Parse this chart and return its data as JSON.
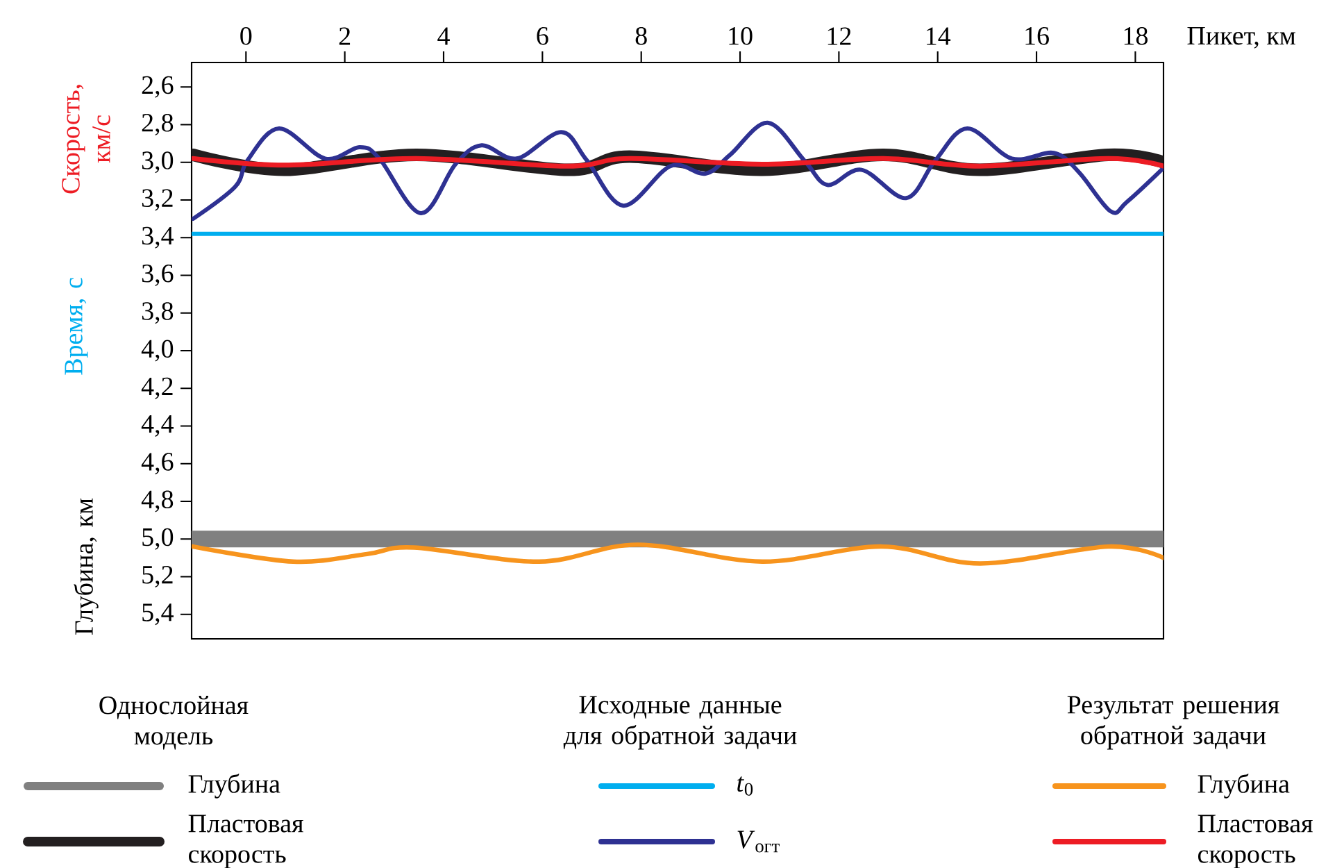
{
  "chart_data": {
    "type": "line",
    "xlabel": "Пикет, км",
    "ylabel": "Скорость, км/с",
    "annotations": [
      "Время, с",
      "Глубина, км",
      "Однослойная модель",
      "Исходные данные для обратной задачи",
      "Результат решения обратной задачи"
    ],
    "xlim": [
      -1.1,
      18.57
    ],
    "ylim": [
      5.53,
      2.47
    ],
    "xticks": [
      0,
      2,
      4,
      6,
      8,
      10,
      12,
      14,
      16,
      18
    ],
    "yticks": [
      {
        "value": 2.6,
        "label": "2,6"
      },
      {
        "value": 2.8,
        "label": "2,8"
      },
      {
        "value": 3.0,
        "label": "3,0"
      },
      {
        "value": 3.2,
        "label": "3,2"
      },
      {
        "value": 3.4,
        "label": "3,4"
      },
      {
        "value": 3.6,
        "label": "3,6"
      },
      {
        "value": 3.8,
        "label": "3,8"
      },
      {
        "value": 4.0,
        "label": "4,0"
      },
      {
        "value": 4.2,
        "label": "4,2"
      },
      {
        "value": 4.4,
        "label": "4,4"
      },
      {
        "value": 4.6,
        "label": "4,6"
      },
      {
        "value": 4.8,
        "label": "4,8"
      },
      {
        "value": 5.0,
        "label": "5,0"
      },
      {
        "value": 5.2,
        "label": "5,2"
      },
      {
        "value": 5.4,
        "label": "5,4"
      }
    ],
    "legend": "bottom",
    "grid": false,
    "series": [
      {
        "name": "Глубина",
        "color": "#808080",
        "x": [
          -1.1,
          18.57
        ],
        "values": [
          5.0,
          5.0
        ]
      },
      {
        "name": "Пластовая скорость",
        "color": "#231f20",
        "x": [
          -1.07,
          0.77,
          3.45,
          6.5,
          7.76,
          10.45,
          12.9,
          14.85,
          17.45,
          18.57
        ],
        "values": [
          2.96,
          3.04,
          2.96,
          3.04,
          2.97,
          3.04,
          2.96,
          3.04,
          2.96,
          3.0
        ]
      },
      {
        "name": "*t*$_{0}$",
        "color": "#00aeef",
        "x": [
          -1.1,
          18.57
        ],
        "values": [
          3.38,
          3.38
        ]
      },
      {
        "name": "*V*$_{огт}$",
        "color": "#2e3192",
        "x": [
          -1.07,
          -0.22,
          0.03,
          0.67,
          1.6,
          2.3,
          2.7,
          3.54,
          4.24,
          4.77,
          5.48,
          6.38,
          6.9,
          7.64,
          8.59,
          9.3,
          9.8,
          10.56,
          11.3,
          11.77,
          12.46,
          13.36,
          13.95,
          14.6,
          15.5,
          16.35,
          16.85,
          17.5,
          17.83,
          18.57
        ],
        "values": [
          3.3,
          3.13,
          2.99,
          2.82,
          2.98,
          2.92,
          2.98,
          3.27,
          3.01,
          2.91,
          2.98,
          2.84,
          2.99,
          3.23,
          3.02,
          3.06,
          2.96,
          2.79,
          2.99,
          3.12,
          3.04,
          3.19,
          2.99,
          2.82,
          2.98,
          2.95,
          3.05,
          3.26,
          3.21,
          3.03
        ]
      },
      {
        "name": "Глубина",
        "color": "#f7941d",
        "x": [
          -1.07,
          0.96,
          2.45,
          3.4,
          5.93,
          7.93,
          10.45,
          12.87,
          14.86,
          17.45,
          18.57
        ],
        "values": [
          5.04,
          5.12,
          5.08,
          5.045,
          5.12,
          5.03,
          5.12,
          5.04,
          5.13,
          5.04,
          5.1
        ]
      },
      {
        "name": "Пластовая скорость",
        "color": "#ed1c24",
        "x": [
          -1.07,
          0.77,
          3.45,
          6.5,
          7.76,
          10.45,
          12.9,
          14.85,
          17.45,
          18.57
        ],
        "values": [
          2.98,
          3.015,
          2.98,
          3.02,
          2.98,
          3.01,
          2.98,
          3.02,
          2.98,
          3.02
        ]
      }
    ]
  }
}
